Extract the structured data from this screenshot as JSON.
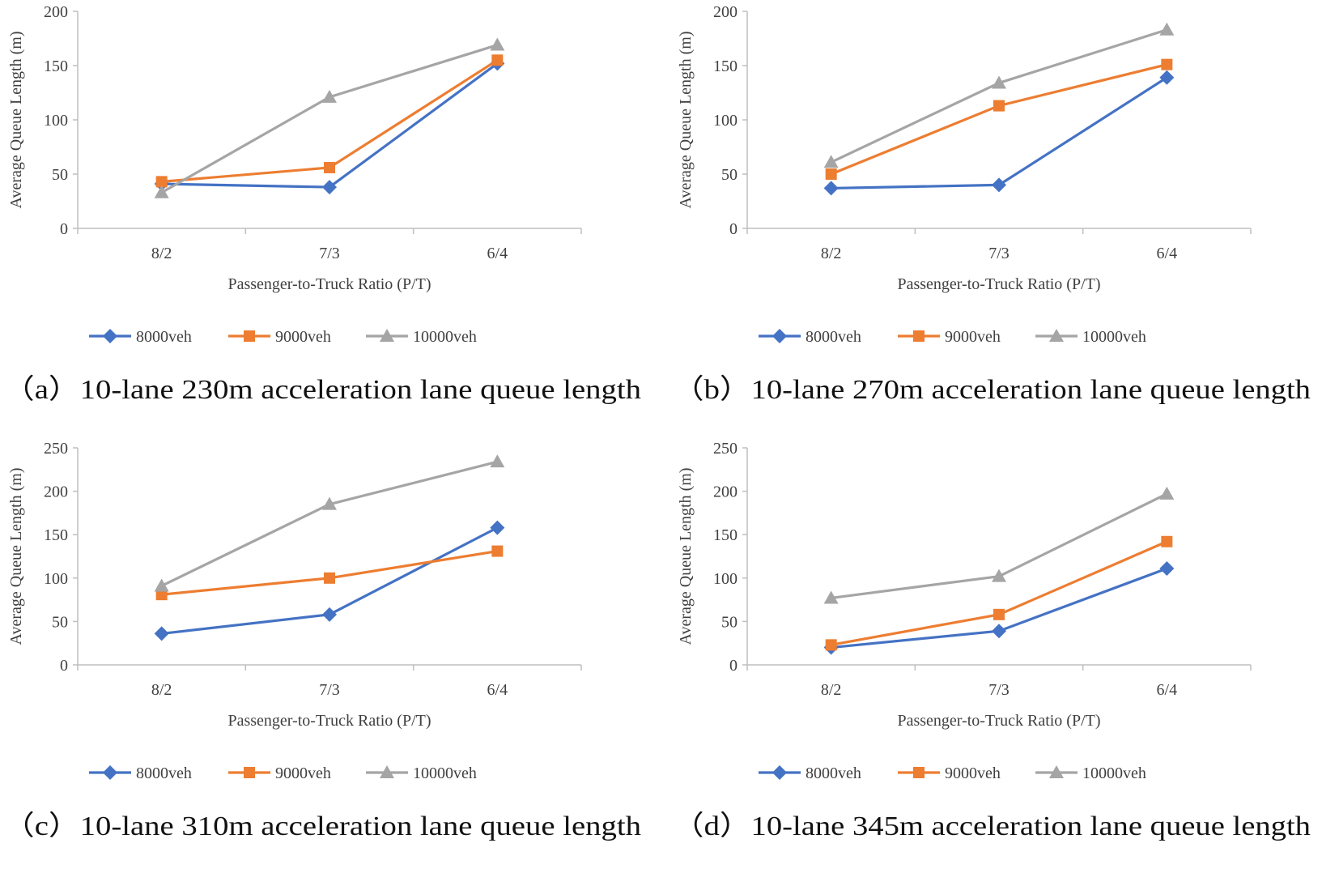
{
  "colors": {
    "s8000": "#4472C4",
    "s9000": "#ED7D31",
    "s10000": "#A5A5A5",
    "axis": "#BFBFBF",
    "text": "#404040"
  },
  "chart_data": [
    {
      "type": "line",
      "caption": "（a）10-lane 230m acceleration lane queue length",
      "xlabel": "Passenger-to-Truck Ratio (P/T)",
      "ylabel": "Average Queue Length (m)",
      "categories": [
        "8/2",
        "7/3",
        "6/4"
      ],
      "ylim": [
        0,
        200
      ],
      "yticks": [
        0,
        50,
        100,
        150,
        200
      ],
      "series": [
        {
          "name": "8000veh",
          "marker": "diamond",
          "values": [
            41,
            38,
            152
          ]
        },
        {
          "name": "9000veh",
          "marker": "square",
          "values": [
            43,
            56,
            155
          ]
        },
        {
          "name": "10000veh",
          "marker": "triangle",
          "values": [
            33,
            121,
            169
          ]
        }
      ]
    },
    {
      "type": "line",
      "caption": "（b）10-lane 270m acceleration lane queue length",
      "xlabel": "Passenger-to-Truck Ratio (P/T)",
      "ylabel": "Average Queue Length (m)",
      "categories": [
        "8/2",
        "7/3",
        "6/4"
      ],
      "ylim": [
        0,
        200
      ],
      "yticks": [
        0,
        50,
        100,
        150,
        200
      ],
      "series": [
        {
          "name": "8000veh",
          "marker": "diamond",
          "values": [
            37,
            40,
            139
          ]
        },
        {
          "name": "9000veh",
          "marker": "square",
          "values": [
            50,
            113,
            151
          ]
        },
        {
          "name": "10000veh",
          "marker": "triangle",
          "values": [
            61,
            134,
            183
          ]
        }
      ]
    },
    {
      "type": "line",
      "caption": "（c）10-lane 310m acceleration lane queue length",
      "xlabel": "Passenger-to-Truck Ratio (P/T)",
      "ylabel": "Average Queue Length (m)",
      "categories": [
        "8/2",
        "7/3",
        "6/4"
      ],
      "ylim": [
        0,
        250
      ],
      "yticks": [
        0,
        50,
        100,
        150,
        200,
        250
      ],
      "series": [
        {
          "name": "8000veh",
          "marker": "diamond",
          "values": [
            36,
            58,
            158
          ]
        },
        {
          "name": "9000veh",
          "marker": "square",
          "values": [
            81,
            100,
            131
          ]
        },
        {
          "name": "10000veh",
          "marker": "triangle",
          "values": [
            91,
            185,
            234
          ]
        }
      ]
    },
    {
      "type": "line",
      "caption": "（d）10-lane 345m acceleration lane queue length",
      "xlabel": "Passenger-to-Truck Ratio (P/T)",
      "ylabel": "Average Queue Length (m)",
      "categories": [
        "8/2",
        "7/3",
        "6/4"
      ],
      "ylim": [
        0,
        250
      ],
      "yticks": [
        0,
        50,
        100,
        150,
        200,
        250
      ],
      "series": [
        {
          "name": "8000veh",
          "marker": "diamond",
          "values": [
            20,
            39,
            111
          ]
        },
        {
          "name": "9000veh",
          "marker": "square",
          "values": [
            23,
            58,
            142
          ]
        },
        {
          "name": "10000veh",
          "marker": "triangle",
          "values": [
            77,
            102,
            197
          ]
        }
      ]
    }
  ]
}
